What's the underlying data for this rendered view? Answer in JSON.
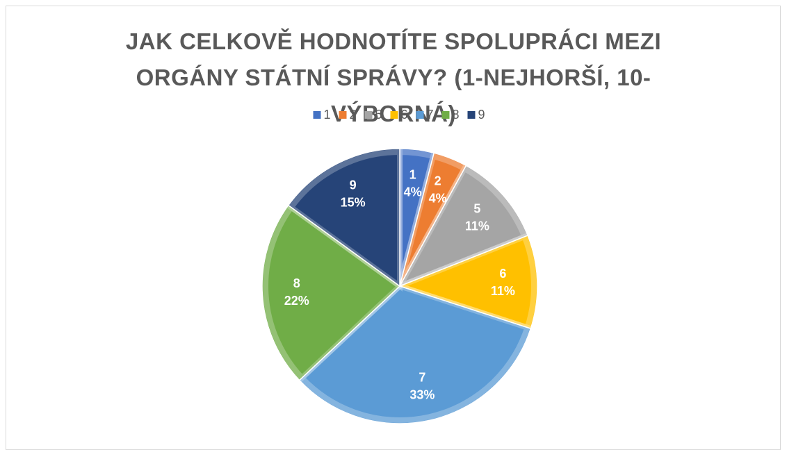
{
  "chart_data": {
    "type": "pie",
    "title": "JAK CELKOVĚ HODNOTÍTE SPOLUPRÁCI MEZI ORGÁNY STÁTNÍ SPRÁVY? (1-NEJHORŠÍ, 10-VÝBORNÁ)",
    "categories": [
      "1",
      "2",
      "5",
      "6",
      "7",
      "8",
      "9"
    ],
    "values": [
      4,
      4,
      11,
      11,
      33,
      22,
      15
    ],
    "value_labels": [
      "4%",
      "4%",
      "11%",
      "11%",
      "33%",
      "22%",
      "15%"
    ],
    "colors": [
      "#4472c4",
      "#ed7d31",
      "#a5a5a5",
      "#ffc000",
      "#5b9bd5",
      "#70ad47",
      "#264478"
    ],
    "legend": "top"
  }
}
